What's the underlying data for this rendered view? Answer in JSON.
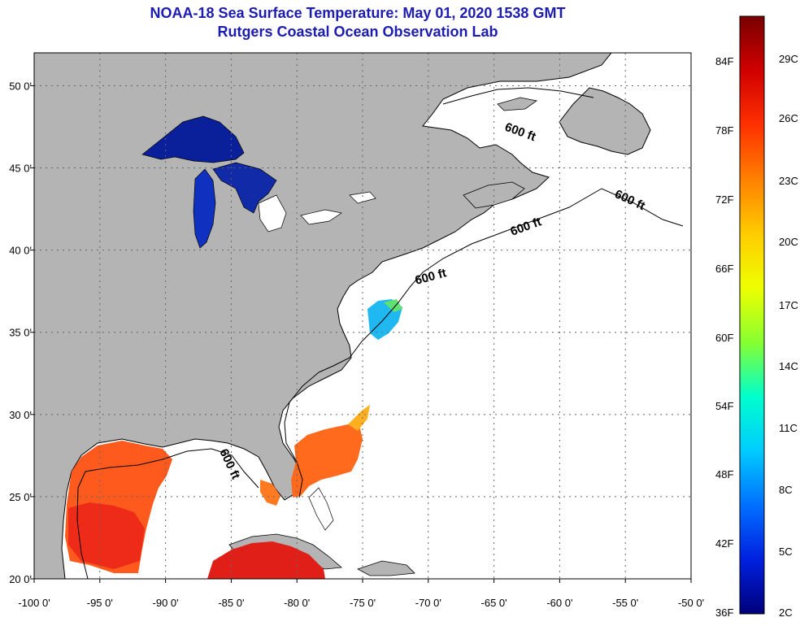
{
  "header": {
    "title": "NOAA-18 Sea Surface Temperature:  May 01, 2020 1538 GMT",
    "subtitle": "Rutgers Coastal Ocean Observation Lab"
  },
  "map": {
    "lon_range": [
      -100,
      -50
    ],
    "lat_range": [
      20,
      52
    ],
    "lon_ticks": [
      -100,
      -95,
      -90,
      -85,
      -80,
      -75,
      -70,
      -65,
      -60,
      -55,
      -50
    ],
    "lon_tick_labels": [
      "-100 0'",
      "-95 0'",
      "-90 0'",
      "-85 0'",
      "-80 0'",
      "-75 0'",
      "-70 0'",
      "-65 0'",
      "-60 0'",
      "-55 0'",
      "-50 0'"
    ],
    "lat_ticks": [
      20,
      25,
      30,
      35,
      40,
      45,
      50
    ],
    "lat_tick_labels": [
      "20 0'",
      "25 0'",
      "30 0'",
      "35 0'",
      "40 0'",
      "45 0'",
      "50 0'"
    ],
    "contour_label": "600 ft",
    "colors": {
      "land": "#b4b4b4",
      "ocean": "#ffffff",
      "grid": "#666666",
      "coast": "#000000"
    }
  },
  "colorbar": {
    "fahrenheit_labels": [
      "84F",
      "78F",
      "72F",
      "66F",
      "60F",
      "54F",
      "48F",
      "42F",
      "36F"
    ],
    "celsius_labels": [
      "29C",
      "26C",
      "23C",
      "20C",
      "17C",
      "14C",
      "11C",
      "8C",
      "5C",
      "2C"
    ],
    "gradient": [
      "#7a0000",
      "#d00000",
      "#ff3000",
      "#ff8000",
      "#ffcc00",
      "#eeff00",
      "#88ff30",
      "#00ffcc",
      "#00ccff",
      "#0070ff",
      "#0020e0",
      "#00007a"
    ]
  }
}
